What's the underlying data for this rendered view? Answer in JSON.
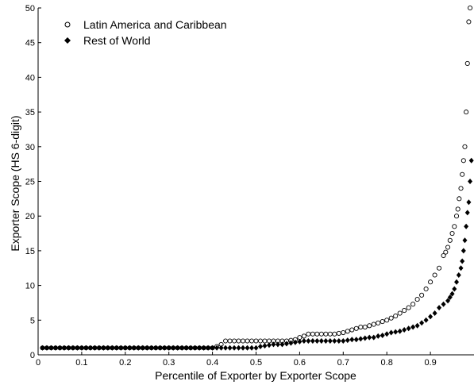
{
  "chart_data": {
    "type": "scatter",
    "title": "",
    "xlabel": "Percentile of Exporter by Exporter Scope",
    "ylabel": "Exporter Scope (HS 6-digit)",
    "xlim": [
      0,
      1
    ],
    "ylim": [
      0,
      50
    ],
    "xticks": [
      0,
      0.1,
      0.2,
      0.3,
      0.4,
      0.5,
      0.6,
      0.7,
      0.8,
      0.9
    ],
    "yticks": [
      0,
      5,
      10,
      15,
      20,
      25,
      30,
      35,
      40,
      45,
      50
    ],
    "grid": false,
    "legend_position": "top-left",
    "series": [
      {
        "name": "Latin America and Caribbean",
        "marker": "open-circle",
        "color": "#000000",
        "points": [
          [
            0.01,
            1
          ],
          [
            0.02,
            1
          ],
          [
            0.03,
            1
          ],
          [
            0.04,
            1
          ],
          [
            0.05,
            1
          ],
          [
            0.06,
            1
          ],
          [
            0.07,
            1
          ],
          [
            0.08,
            1
          ],
          [
            0.09,
            1
          ],
          [
            0.1,
            1
          ],
          [
            0.11,
            1
          ],
          [
            0.12,
            1
          ],
          [
            0.13,
            1
          ],
          [
            0.14,
            1
          ],
          [
            0.15,
            1
          ],
          [
            0.16,
            1
          ],
          [
            0.17,
            1
          ],
          [
            0.18,
            1
          ],
          [
            0.19,
            1
          ],
          [
            0.2,
            1
          ],
          [
            0.21,
            1
          ],
          [
            0.22,
            1
          ],
          [
            0.23,
            1
          ],
          [
            0.24,
            1
          ],
          [
            0.25,
            1
          ],
          [
            0.26,
            1
          ],
          [
            0.27,
            1
          ],
          [
            0.28,
            1
          ],
          [
            0.29,
            1
          ],
          [
            0.3,
            1
          ],
          [
            0.31,
            1
          ],
          [
            0.32,
            1
          ],
          [
            0.33,
            1
          ],
          [
            0.34,
            1
          ],
          [
            0.35,
            1
          ],
          [
            0.36,
            1
          ],
          [
            0.37,
            1
          ],
          [
            0.38,
            1
          ],
          [
            0.39,
            1
          ],
          [
            0.4,
            1
          ],
          [
            0.41,
            1.2
          ],
          [
            0.42,
            1.5
          ],
          [
            0.43,
            2
          ],
          [
            0.44,
            2
          ],
          [
            0.45,
            2
          ],
          [
            0.46,
            2
          ],
          [
            0.47,
            2
          ],
          [
            0.48,
            2
          ],
          [
            0.49,
            2
          ],
          [
            0.5,
            2
          ],
          [
            0.51,
            2
          ],
          [
            0.52,
            2
          ],
          [
            0.53,
            2
          ],
          [
            0.54,
            2
          ],
          [
            0.55,
            2
          ],
          [
            0.56,
            2
          ],
          [
            0.57,
            2
          ],
          [
            0.58,
            2.1
          ],
          [
            0.59,
            2.2
          ],
          [
            0.6,
            2.5
          ],
          [
            0.61,
            2.7
          ],
          [
            0.62,
            3
          ],
          [
            0.63,
            3
          ],
          [
            0.64,
            3
          ],
          [
            0.65,
            3
          ],
          [
            0.66,
            3
          ],
          [
            0.67,
            3
          ],
          [
            0.68,
            3
          ],
          [
            0.69,
            3.1
          ],
          [
            0.7,
            3.2
          ],
          [
            0.71,
            3.4
          ],
          [
            0.72,
            3.6
          ],
          [
            0.73,
            3.8
          ],
          [
            0.74,
            4
          ],
          [
            0.75,
            4
          ],
          [
            0.76,
            4.2
          ],
          [
            0.77,
            4.4
          ],
          [
            0.78,
            4.6
          ],
          [
            0.79,
            4.8
          ],
          [
            0.8,
            5
          ],
          [
            0.81,
            5.3
          ],
          [
            0.82,
            5.6
          ],
          [
            0.83,
            6
          ],
          [
            0.84,
            6.4
          ],
          [
            0.85,
            6.8
          ],
          [
            0.86,
            7.3
          ],
          [
            0.87,
            8
          ],
          [
            0.88,
            8.6
          ],
          [
            0.89,
            9.5
          ],
          [
            0.9,
            10.5
          ],
          [
            0.91,
            11.5
          ],
          [
            0.92,
            12.5
          ],
          [
            0.93,
            14.3
          ],
          [
            0.935,
            14.8
          ],
          [
            0.94,
            15.5
          ],
          [
            0.945,
            16.5
          ],
          [
            0.95,
            17.5
          ],
          [
            0.955,
            18.5
          ],
          [
            0.96,
            20
          ],
          [
            0.963,
            21
          ],
          [
            0.966,
            22.5
          ],
          [
            0.97,
            24
          ],
          [
            0.973,
            26
          ],
          [
            0.976,
            28
          ],
          [
            0.979,
            30
          ],
          [
            0.982,
            35
          ],
          [
            0.985,
            42
          ],
          [
            0.988,
            48
          ],
          [
            0.991,
            50
          ]
        ]
      },
      {
        "name": "Rest of World",
        "marker": "filled-diamond",
        "color": "#000000",
        "points": [
          [
            0.01,
            1
          ],
          [
            0.02,
            1
          ],
          [
            0.03,
            1
          ],
          [
            0.04,
            1
          ],
          [
            0.05,
            1
          ],
          [
            0.06,
            1
          ],
          [
            0.07,
            1
          ],
          [
            0.08,
            1
          ],
          [
            0.09,
            1
          ],
          [
            0.1,
            1
          ],
          [
            0.11,
            1
          ],
          [
            0.12,
            1
          ],
          [
            0.13,
            1
          ],
          [
            0.14,
            1
          ],
          [
            0.15,
            1
          ],
          [
            0.16,
            1
          ],
          [
            0.17,
            1
          ],
          [
            0.18,
            1
          ],
          [
            0.19,
            1
          ],
          [
            0.2,
            1
          ],
          [
            0.21,
            1
          ],
          [
            0.22,
            1
          ],
          [
            0.23,
            1
          ],
          [
            0.24,
            1
          ],
          [
            0.25,
            1
          ],
          [
            0.26,
            1
          ],
          [
            0.27,
            1
          ],
          [
            0.28,
            1
          ],
          [
            0.29,
            1
          ],
          [
            0.3,
            1
          ],
          [
            0.31,
            1
          ],
          [
            0.32,
            1
          ],
          [
            0.33,
            1
          ],
          [
            0.34,
            1
          ],
          [
            0.35,
            1
          ],
          [
            0.36,
            1
          ],
          [
            0.37,
            1
          ],
          [
            0.38,
            1
          ],
          [
            0.39,
            1
          ],
          [
            0.4,
            1
          ],
          [
            0.41,
            1
          ],
          [
            0.42,
            1
          ],
          [
            0.43,
            1
          ],
          [
            0.44,
            1
          ],
          [
            0.45,
            1
          ],
          [
            0.46,
            1
          ],
          [
            0.47,
            1
          ],
          [
            0.48,
            1
          ],
          [
            0.49,
            1
          ],
          [
            0.5,
            1
          ],
          [
            0.51,
            1.2
          ],
          [
            0.52,
            1.3
          ],
          [
            0.53,
            1.4
          ],
          [
            0.54,
            1.5
          ],
          [
            0.55,
            1.5
          ],
          [
            0.56,
            1.5
          ],
          [
            0.57,
            1.6
          ],
          [
            0.58,
            1.7
          ],
          [
            0.59,
            1.8
          ],
          [
            0.6,
            1.9
          ],
          [
            0.61,
            2
          ],
          [
            0.62,
            2
          ],
          [
            0.63,
            2
          ],
          [
            0.64,
            2
          ],
          [
            0.65,
            2
          ],
          [
            0.66,
            2
          ],
          [
            0.67,
            2
          ],
          [
            0.68,
            2
          ],
          [
            0.69,
            2
          ],
          [
            0.7,
            2
          ],
          [
            0.71,
            2.1
          ],
          [
            0.72,
            2.2
          ],
          [
            0.73,
            2.2
          ],
          [
            0.74,
            2.3
          ],
          [
            0.75,
            2.4
          ],
          [
            0.76,
            2.5
          ],
          [
            0.77,
            2.5
          ],
          [
            0.78,
            2.7
          ],
          [
            0.79,
            2.8
          ],
          [
            0.8,
            3
          ],
          [
            0.81,
            3.2
          ],
          [
            0.82,
            3.3
          ],
          [
            0.83,
            3.4
          ],
          [
            0.84,
            3.6
          ],
          [
            0.85,
            3.8
          ],
          [
            0.86,
            4
          ],
          [
            0.87,
            4.2
          ],
          [
            0.88,
            4.6
          ],
          [
            0.89,
            5
          ],
          [
            0.9,
            5.5
          ],
          [
            0.91,
            6
          ],
          [
            0.92,
            6.8
          ],
          [
            0.93,
            7.3
          ],
          [
            0.94,
            7.8
          ],
          [
            0.945,
            8.3
          ],
          [
            0.95,
            8.8
          ],
          [
            0.955,
            9.5
          ],
          [
            0.96,
            10.5
          ],
          [
            0.965,
            11.5
          ],
          [
            0.97,
            12.5
          ],
          [
            0.973,
            13.5
          ],
          [
            0.976,
            15
          ],
          [
            0.979,
            16.5
          ],
          [
            0.982,
            18.5
          ],
          [
            0.985,
            20.5
          ],
          [
            0.988,
            22
          ],
          [
            0.991,
            25
          ],
          [
            0.994,
            28
          ]
        ]
      }
    ]
  }
}
